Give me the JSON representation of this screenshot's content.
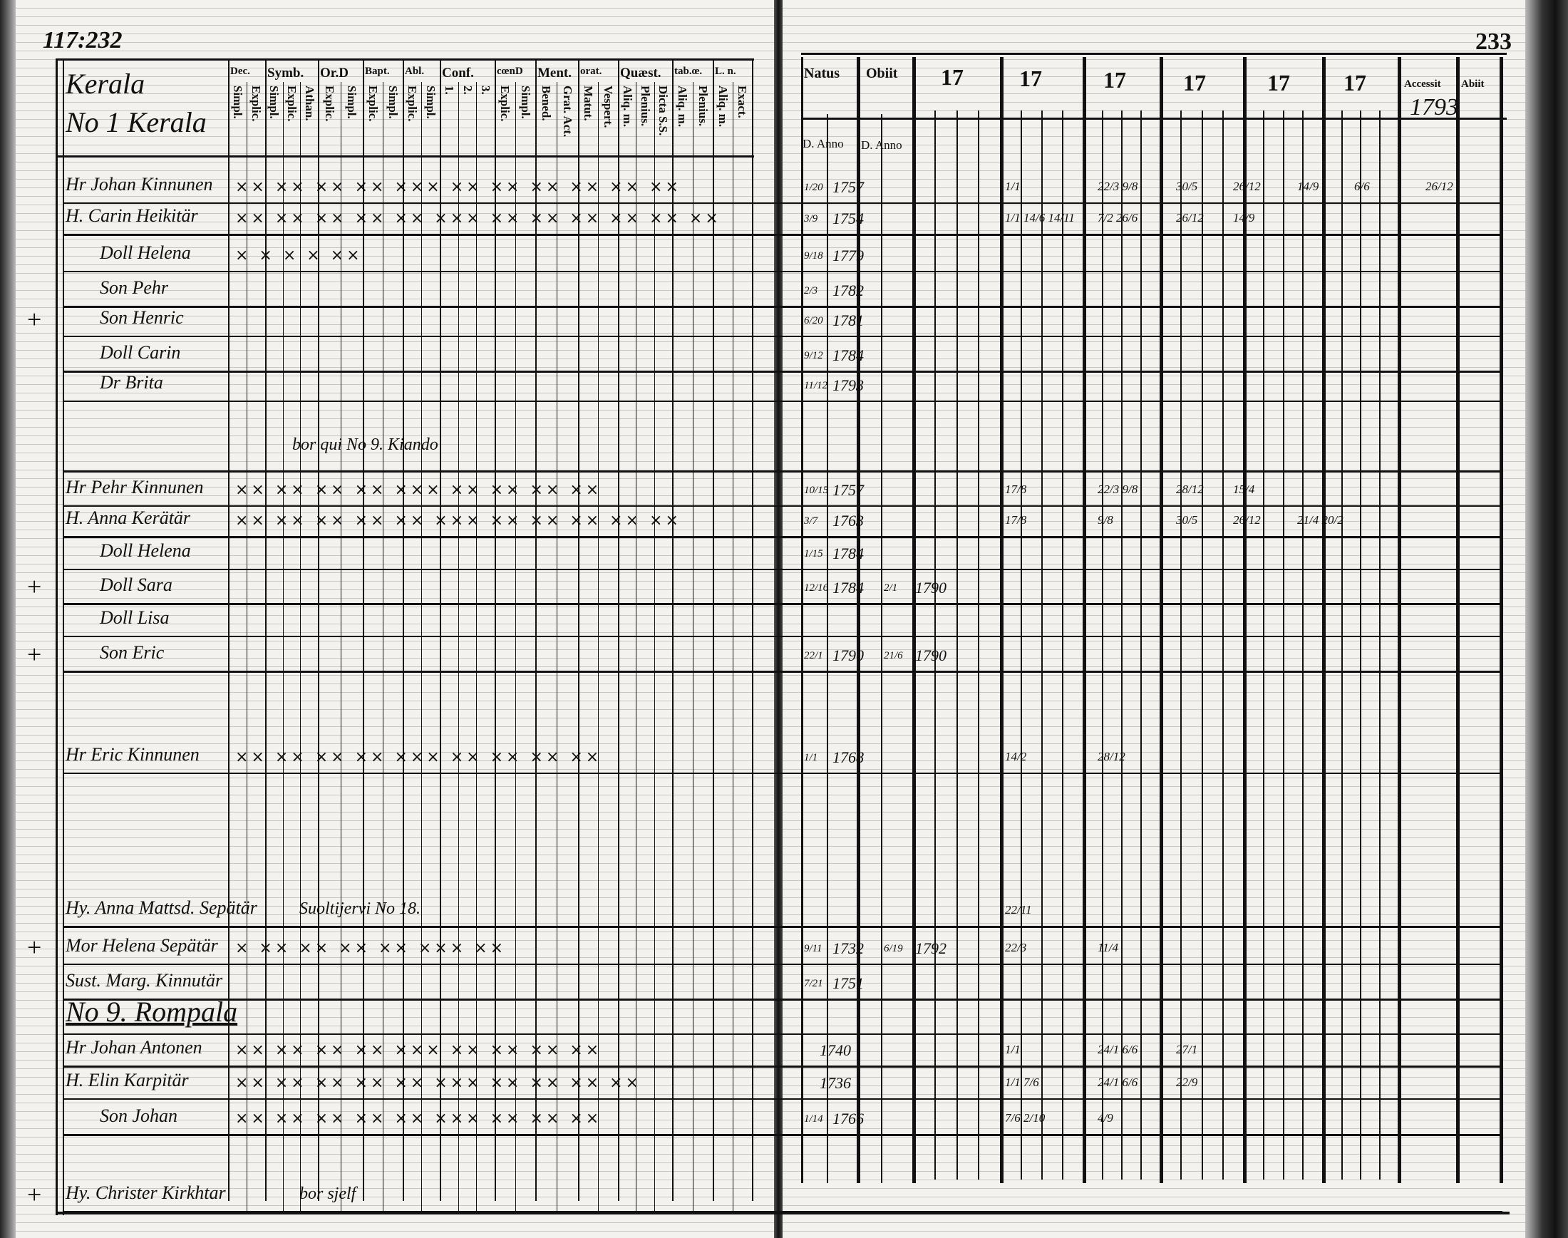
{
  "left_page": {
    "page_number": "117:232",
    "village_title": "Kerala",
    "village_number": "No 1 Kerala",
    "column_groups": [
      {
        "label": "Dec.",
        "sub": [
          "Simpl.",
          "Explic."
        ]
      },
      {
        "label": "Symb.",
        "sub": [
          "Simpl.",
          "Explic.",
          "Athan."
        ]
      },
      {
        "label": "Or.D",
        "sub": [
          "Explic.",
          "Simpl."
        ]
      },
      {
        "label": "Bapt.",
        "sub": [
          "Explic.",
          "Simpl."
        ]
      },
      {
        "label": "Abl.",
        "sub": [
          "Explic.",
          "Simpl."
        ]
      },
      {
        "label": "Conf.",
        "sub": [
          "1.",
          "2.",
          "3."
        ]
      },
      {
        "label": "cœnD",
        "sub": [
          "Explic.",
          "Simpl."
        ]
      },
      {
        "label": "Ment.",
        "sub": [
          "Bened.",
          "Grat. Act."
        ]
      },
      {
        "label": "orat.",
        "sub": [
          "Matut.",
          "Vespert."
        ]
      },
      {
        "label": "Quæst.",
        "sub": [
          "Aliq. m.",
          "Plenius.",
          "Dicta S.S."
        ]
      },
      {
        "label": "tab.œ.",
        "sub": [
          "Aliq. m.",
          "Plenius."
        ]
      },
      {
        "label": "L. n.",
        "sub": [
          "Aliq. m.",
          "Exact."
        ]
      }
    ]
  },
  "right_page": {
    "page_number": "233",
    "headers": {
      "natus": "Natus",
      "obiit": "Obiit",
      "years": [
        "17",
        "17",
        "17",
        "17",
        "17",
        "17"
      ],
      "accessit": "Accessit",
      "abiit": "Abiit",
      "accessit_year": "1793",
      "d_anno": "D. Anno"
    }
  },
  "rows": [
    {
      "name": "Hr Johan Kinnunen",
      "marks": "×× ×× ×× ×× ××× ×× ×× ×× ×× ×× ××",
      "natus_day": "1/20",
      "natus_year": "1757",
      "entries": [
        "1/1",
        "22/3 9/8",
        "30/5",
        "26/12",
        "14/9",
        "6/6",
        "26/12"
      ]
    },
    {
      "name": "H. Carin Heikitär",
      "marks": "×× ×× ×× ×× ×× ××× ×× ×× ×× ×× ×× ××",
      "natus_day": "3/9",
      "natus_year": "1754",
      "entries": [
        "1/1 14/6 14/11",
        "7/2 26/6",
        "26/12",
        "14/9"
      ]
    },
    {
      "name": "Doll Helena",
      "marks": "× × × ×                  ××",
      "natus_day": "9/18",
      "natus_year": "1779"
    },
    {
      "name": "Son Pehr",
      "natus_day": "2/3",
      "natus_year": "1782"
    },
    {
      "name": "Son Henric",
      "cross": "+",
      "natus_day": "6/20",
      "natus_year": "1781"
    },
    {
      "name": "Doll Carin",
      "natus_day": "9/12",
      "natus_year": "1784"
    },
    {
      "name": "Dr Brita",
      "natus_day": "11/12",
      "natus_year": "1793"
    },
    {
      "note": "bor qui No 9. Kiando"
    },
    {
      "name": "Hr Pehr Kinnunen",
      "marks": "×× ×× ×× ×× ××× ××          ×× ×× ××",
      "natus_day": "10/15",
      "natus_year": "1757",
      "entries": [
        "17/8",
        "22/3 9/8",
        "28/12",
        "15/4"
      ]
    },
    {
      "name": "H. Anna Kerätär",
      "marks": "×× ×× ×× ×× ×× ××× ×× ×× ×× ×× ××",
      "natus_day": "3/7",
      "natus_year": "1763",
      "entries": [
        "17/8",
        "9/8",
        "30/5",
        "26/12",
        "21/4 20/2"
      ]
    },
    {
      "name": "Doll Helena",
      "natus_day": "1/15",
      "natus_year": "1784"
    },
    {
      "name": "Doll Sara",
      "cross": "+",
      "natus_day": "12/16",
      "natus_year": "1784",
      "obiit_day": "2/1",
      "obiit_year": "1790"
    },
    {
      "name": "Doll Lisa"
    },
    {
      "name": "Son Eric",
      "cross": "+",
      "natus_day": "22/1",
      "natus_year": "1790",
      "obiit_day": "21/6",
      "obiit_year": "1790"
    },
    {
      "name": "Hr Eric Kinnunen",
      "marks": "×× ×× ×× ×× ××× ××          ×× ×× ××",
      "natus_day": "1/1",
      "natus_year": "1768",
      "entries": [
        "14/2",
        "28/12"
      ]
    },
    {
      "name": "Hy. Anna Mattsd. Sepätär",
      "note": "Suoltijervi No 18.",
      "entries": [
        "22/11"
      ]
    },
    {
      "name": "Mor Helena Sepätär",
      "cross": "+",
      "marks": "× ×× ×× ×× ×× ××× ××",
      "natus_day": "9/11",
      "natus_year": "1732",
      "obiit_day": "6/19",
      "obiit_year": "1792",
      "entries": [
        "22/3",
        "11/4"
      ]
    },
    {
      "name": "Sust. Marg. Kinnutär",
      "natus_day": "7/21",
      "natus_year": "1751"
    },
    {
      "heading": "No 9. Rompala"
    },
    {
      "name": "Hr Johan Antonen",
      "marks": "×× ×× ×× ×× ××× ×× ×× ××    ××",
      "natus_year": "1740",
      "entries": [
        "1/1",
        "24/1 6/6",
        "27/1"
      ]
    },
    {
      "name": "H. Elin Karpitär",
      "marks": "×× ×× ×× ×× ×× ××× ×× ×× ××    ××",
      "natus_year": "1736",
      "entries": [
        "1/1 7/6",
        "24/1 6/6",
        "22/9"
      ]
    },
    {
      "name": "Son Johan",
      "marks": "×× ×× ×× ×× ×× ××× ××      ×× ××",
      "natus_day": "1/14",
      "natus_year": "1766",
      "entries": [
        "7/6 2/10",
        "4/9"
      ]
    },
    {
      "name": "Hy. Christer Kirkhtar",
      "note": "bor sjelf",
      "cross": "+"
    }
  ]
}
